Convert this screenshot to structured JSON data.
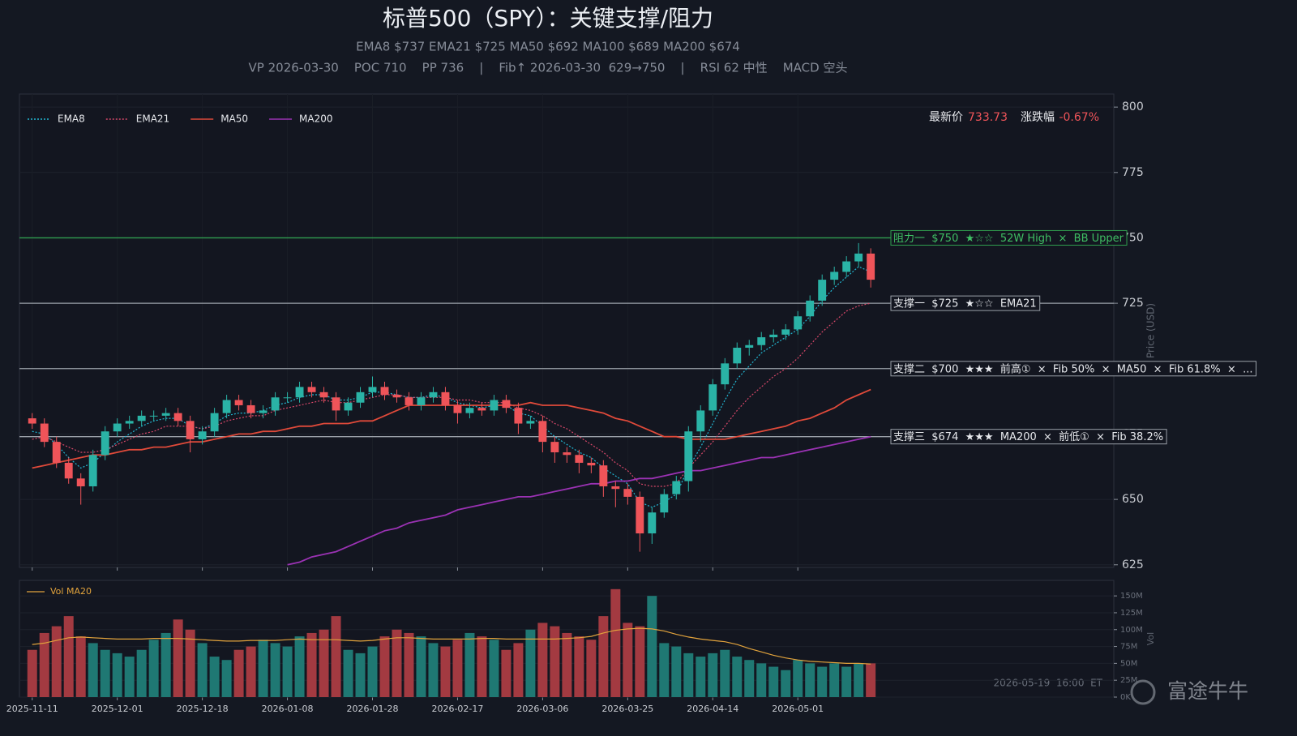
{
  "chart_data": {
    "type": "candlestick",
    "title": "标普500（SPY）：关键支撑/阻力",
    "subtitle": "EMA8 $737   EMA21 $725   MA50 $692   MA100 $689   MA200 $674",
    "info": "VP 2026-03-30    POC 710    PP 736    |    Fib↑ 2026-03-30  629→750    |    RSI 62 中性    MACD 空头",
    "price_label": "最新价",
    "price": "733.73",
    "change_label": "涨跌幅",
    "change": "-0.67%",
    "y_label": "Price (USD)",
    "timestamp": "2026-05-19  16:00  ET",
    "watermark": "富途牛牛",
    "up_color": "#2ab3a6",
    "down_color": "#ef5459",
    "grid": true,
    "xlim": [
      -2.1,
      178
    ],
    "ylim": [
      624,
      805
    ],
    "xticks": [
      {
        "value": 0,
        "label": "2025-11-11"
      },
      {
        "value": 14,
        "label": "2025-12-01"
      },
      {
        "value": 28,
        "label": "2025-12-18"
      },
      {
        "value": 42,
        "label": "2026-01-08"
      },
      {
        "value": 56,
        "label": "2026-01-28"
      },
      {
        "value": 70,
        "label": "2026-02-17"
      },
      {
        "value": 84,
        "label": "2026-03-06"
      },
      {
        "value": 98,
        "label": "2026-03-25"
      },
      {
        "value": 112,
        "label": "2026-04-14"
      },
      {
        "value": 126,
        "label": "2026-05-01"
      }
    ],
    "yticks": [
      625,
      650,
      675,
      700,
      725,
      750,
      775,
      800
    ],
    "x": [
      0,
      2,
      4,
      6,
      8,
      10,
      12,
      14,
      16,
      18,
      20,
      22,
      24,
      26,
      28,
      30,
      32,
      34,
      36,
      38,
      40,
      42,
      44,
      46,
      48,
      50,
      52,
      54,
      56,
      58,
      60,
      62,
      64,
      66,
      68,
      70,
      72,
      74,
      76,
      78,
      80,
      82,
      84,
      86,
      88,
      90,
      92,
      94,
      96,
      98,
      100,
      102,
      104,
      106,
      108,
      110,
      112,
      114,
      116,
      118,
      120,
      122,
      124,
      126,
      128,
      130,
      132,
      134,
      136,
      138
    ],
    "open": [
      681,
      679,
      672,
      664,
      658,
      655,
      667,
      676,
      679,
      680,
      682,
      682,
      683,
      680,
      673,
      676,
      683,
      688,
      686,
      683,
      684,
      689,
      689,
      693,
      691,
      689,
      684,
      687,
      691,
      693,
      690,
      689,
      686,
      689,
      691,
      686,
      683,
      685,
      684,
      688,
      685,
      679,
      680,
      672,
      668,
      667,
      664,
      663,
      655,
      654,
      651,
      637,
      645,
      652,
      657,
      676,
      684,
      694,
      702,
      708,
      709,
      712,
      713,
      715,
      720,
      726,
      734,
      737,
      741,
      744
    ],
    "high": [
      683,
      681,
      674,
      666,
      660,
      669,
      678,
      681,
      682,
      684,
      684,
      685,
      685,
      682,
      678,
      685,
      690,
      690,
      688,
      686,
      691,
      691,
      695,
      695,
      693,
      691,
      689,
      693,
      697,
      695,
      692,
      691,
      691,
      693,
      693,
      688,
      687,
      687,
      690,
      690,
      687,
      682,
      682,
      674,
      670,
      669,
      666,
      665,
      657,
      656,
      653,
      647,
      654,
      659,
      678,
      686,
      696,
      704,
      710,
      711,
      714,
      715,
      717,
      722,
      728,
      736,
      739,
      743,
      748,
      746
    ],
    "low": [
      677,
      670,
      662,
      656,
      648,
      653,
      665,
      674,
      677,
      678,
      680,
      680,
      678,
      668,
      671,
      674,
      681,
      684,
      681,
      681,
      682,
      687,
      687,
      689,
      687,
      680,
      682,
      685,
      689,
      688,
      687,
      684,
      684,
      687,
      684,
      679,
      681,
      682,
      682,
      683,
      675,
      677,
      668,
      664,
      664,
      660,
      660,
      651,
      647,
      648,
      630,
      633,
      643,
      650,
      653,
      672,
      682,
      692,
      700,
      705,
      707,
      710,
      711,
      713,
      718,
      724,
      732,
      735,
      739,
      731
    ],
    "close": [
      679,
      672,
      664,
      658,
      655,
      667,
      676,
      679,
      680,
      682,
      682,
      683,
      680,
      673,
      676,
      683,
      688,
      686,
      683,
      684,
      689,
      689,
      693,
      691,
      689,
      684,
      687,
      691,
      693,
      690,
      689,
      686,
      689,
      691,
      686,
      683,
      685,
      684,
      688,
      685,
      679,
      680,
      672,
      668,
      667,
      664,
      663,
      655,
      654,
      651,
      637,
      645,
      652,
      657,
      676,
      684,
      694,
      702,
      708,
      709,
      712,
      713,
      715,
      720,
      726,
      734,
      737,
      741,
      744,
      734
    ],
    "series": [
      {
        "name": "EMA8",
        "color": "#22b8d4",
        "dash": "dotted",
        "values": [
          676,
          675,
          671,
          666,
          662,
          664,
          668,
          672,
          675,
          678,
          680,
          681,
          681,
          678,
          677,
          679,
          682,
          683,
          683,
          684,
          686,
          687,
          689,
          690,
          690,
          688,
          688,
          689,
          691,
          691,
          690,
          689,
          689,
          690,
          689,
          687,
          686,
          685,
          686,
          686,
          683,
          682,
          678,
          674,
          671,
          668,
          666,
          662,
          659,
          656,
          649,
          647,
          649,
          652,
          662,
          670,
          679,
          688,
          696,
          701,
          706,
          709,
          712,
          715,
          720,
          726,
          731,
          735,
          739,
          737
        ]
      },
      {
        "name": "EMA21",
        "color": "#d9486a",
        "dash": "dotted",
        "values": [
          673,
          674,
          672,
          670,
          668,
          668,
          669,
          671,
          673,
          675,
          676,
          678,
          678,
          678,
          677,
          678,
          680,
          681,
          682,
          682,
          684,
          685,
          686,
          687,
          688,
          687,
          687,
          688,
          689,
          690,
          690,
          689,
          689,
          689,
          689,
          688,
          688,
          687,
          687,
          687,
          685,
          684,
          682,
          679,
          677,
          674,
          671,
          668,
          664,
          661,
          656,
          655,
          655,
          656,
          662,
          667,
          672,
          678,
          684,
          689,
          693,
          697,
          700,
          704,
          709,
          714,
          718,
          722,
          724,
          725
        ]
      },
      {
        "name": "MA50",
        "color": "#e04a3a",
        "dash": "solid",
        "values": [
          662,
          663,
          664,
          665,
          666,
          667,
          667,
          668,
          669,
          669,
          670,
          670,
          671,
          672,
          672,
          673,
          674,
          675,
          675,
          676,
          676,
          677,
          678,
          678,
          679,
          679,
          679,
          680,
          680,
          682,
          684,
          686,
          686,
          686,
          686,
          686,
          686,
          686,
          686,
          686,
          686,
          687,
          686,
          686,
          686,
          685,
          684,
          683,
          681,
          680,
          678,
          676,
          674,
          674,
          673,
          673,
          673,
          673,
          674,
          675,
          676,
          677,
          678,
          680,
          681,
          683,
          685,
          688,
          690,
          692
        ]
      },
      {
        "name": "MA200",
        "color": "#9b32b4",
        "dash": "solid",
        "values": [
          null,
          null,
          null,
          null,
          null,
          null,
          null,
          null,
          null,
          null,
          null,
          null,
          null,
          null,
          null,
          null,
          null,
          null,
          null,
          null,
          null,
          625,
          626,
          628,
          629,
          630,
          632,
          634,
          636,
          638,
          639,
          641,
          642,
          643,
          644,
          646,
          647,
          648,
          649,
          650,
          651,
          651,
          652,
          653,
          654,
          655,
          656,
          656,
          657,
          657,
          658,
          658,
          659,
          660,
          661,
          661,
          662,
          663,
          664,
          665,
          666,
          666,
          667,
          668,
          669,
          670,
          671,
          672,
          673,
          674
        ]
      }
    ],
    "levels": [
      {
        "value": 750,
        "color": "#2f9e4f",
        "label": "阻力一  $750  ★☆☆  52W High  ×  BB Upper"
      },
      {
        "value": 725,
        "color": "#9aa0a8",
        "label": "支撑一  $725  ★☆☆  EMA21"
      },
      {
        "value": 700,
        "color": "#9aa0a8",
        "label": "支撑二  $700  ★★★  前高①  ×  Fib 50%  ×  MA50  ×  Fib 61.8%  ×  ..."
      },
      {
        "value": 674,
        "color": "#9aa0a8",
        "label": "支撑三  $674  ★★★  MA200  ×  前低①  ×  Fib 38.2%"
      }
    ],
    "volume": {
      "label": "Vol",
      "ylim": [
        0,
        173
      ],
      "yticks": [
        {
          "value": 0,
          "label": "0K"
        },
        {
          "value": 25,
          "label": "25M"
        },
        {
          "value": 50,
          "label": "50M"
        },
        {
          "value": 75,
          "label": "75M"
        },
        {
          "value": 100,
          "label": "100M"
        },
        {
          "value": 125,
          "label": "125M"
        },
        {
          "value": 150,
          "label": "150M"
        }
      ],
      "up_color": "#1f7873",
      "down_color": "#a33a41",
      "values": [
        70,
        95,
        105,
        120,
        90,
        80,
        70,
        65,
        60,
        70,
        85,
        95,
        115,
        100,
        80,
        60,
        55,
        70,
        75,
        85,
        80,
        75,
        90,
        95,
        100,
        120,
        70,
        65,
        75,
        90,
        100,
        95,
        90,
        80,
        75,
        85,
        95,
        90,
        85,
        70,
        80,
        100,
        110,
        105,
        95,
        90,
        85,
        120,
        160,
        110,
        105,
        150,
        80,
        75,
        65,
        60,
        65,
        70,
        60,
        55,
        50,
        45,
        40,
        55,
        50,
        45,
        50,
        45,
        50,
        50
      ],
      "ma": {
        "name": "Vol MA20",
        "color": "#e2a33c",
        "values": [
          78,
          80,
          84,
          88,
          89,
          88,
          87,
          86,
          86,
          86,
          87,
          87,
          87,
          86,
          85,
          84,
          83,
          83,
          84,
          84,
          84,
          85,
          86,
          85,
          85,
          85,
          84,
          83,
          84,
          86,
          88,
          88,
          87,
          86,
          86,
          86,
          86,
          87,
          87,
          86,
          86,
          86,
          86,
          86,
          87,
          88,
          90,
          95,
          99,
          101,
          102,
          101,
          98,
          93,
          89,
          86,
          84,
          82,
          78,
          72,
          67,
          62,
          58,
          55,
          53,
          52,
          51,
          50,
          50,
          49
        ]
      }
    }
  }
}
